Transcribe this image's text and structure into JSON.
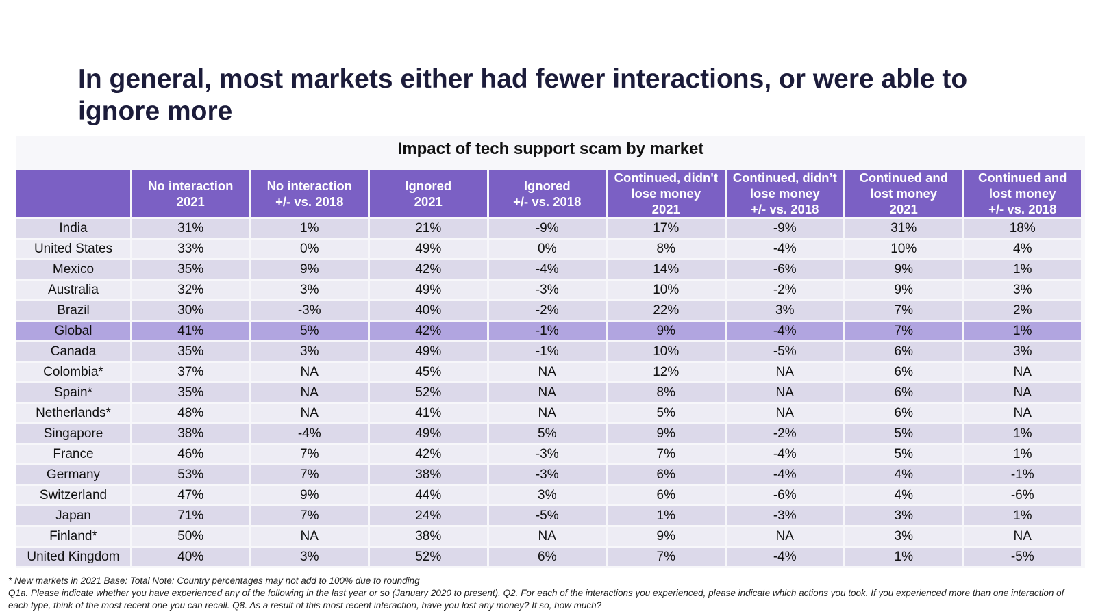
{
  "page": {
    "title": "In general, most markets either had fewer interactions, or were able to ignore more"
  },
  "chart_data": {
    "type": "table",
    "title": "Impact of tech support scam by market",
    "columns": [
      "No interaction\n2021",
      "No interaction\n+/- vs. 2018",
      "Ignored\n2021",
      "Ignored\n+/- vs. 2018",
      "Continued, didn't\nlose money\n2021",
      "Continued, didn’t\nlose money\n+/- vs. 2018",
      "Continued and\nlost money\n2021",
      "Continued and\nlost money\n+/- vs. 2018"
    ],
    "highlight_row": "Global",
    "rows": [
      {
        "market": "India",
        "values": [
          "31%",
          "1%",
          "21%",
          "-9%",
          "17%",
          "-9%",
          "31%",
          "18%"
        ]
      },
      {
        "market": "United States",
        "values": [
          "33%",
          "0%",
          "49%",
          "0%",
          "8%",
          "-4%",
          "10%",
          "4%"
        ]
      },
      {
        "market": "Mexico",
        "values": [
          "35%",
          "9%",
          "42%",
          "-4%",
          "14%",
          "-6%",
          "9%",
          "1%"
        ]
      },
      {
        "market": "Australia",
        "values": [
          "32%",
          "3%",
          "49%",
          "-3%",
          "10%",
          "-2%",
          "9%",
          "3%"
        ]
      },
      {
        "market": "Brazil",
        "values": [
          "30%",
          "-3%",
          "40%",
          "-2%",
          "22%",
          "3%",
          "7%",
          "2%"
        ]
      },
      {
        "market": "Global",
        "values": [
          "41%",
          "5%",
          "42%",
          "-1%",
          "9%",
          "-4%",
          "7%",
          "1%"
        ]
      },
      {
        "market": "Canada",
        "values": [
          "35%",
          "3%",
          "49%",
          "-1%",
          "10%",
          "-5%",
          "6%",
          "3%"
        ]
      },
      {
        "market": "Colombia*",
        "values": [
          "37%",
          "NA",
          "45%",
          "NA",
          "12%",
          "NA",
          "6%",
          "NA"
        ]
      },
      {
        "market": "Spain*",
        "values": [
          "35%",
          "NA",
          "52%",
          "NA",
          "8%",
          "NA",
          "6%",
          "NA"
        ]
      },
      {
        "market": "Netherlands*",
        "values": [
          "48%",
          "NA",
          "41%",
          "NA",
          "5%",
          "NA",
          "6%",
          "NA"
        ]
      },
      {
        "market": "Singapore",
        "values": [
          "38%",
          "-4%",
          "49%",
          "5%",
          "9%",
          "-2%",
          "5%",
          "1%"
        ]
      },
      {
        "market": "France",
        "values": [
          "46%",
          "7%",
          "42%",
          "-3%",
          "7%",
          "-4%",
          "5%",
          "1%"
        ]
      },
      {
        "market": "Germany",
        "values": [
          "53%",
          "7%",
          "38%",
          "-3%",
          "6%",
          "-4%",
          "4%",
          "-1%"
        ]
      },
      {
        "market": "Switzerland",
        "values": [
          "47%",
          "9%",
          "44%",
          "3%",
          "6%",
          "-6%",
          "4%",
          "-6%"
        ]
      },
      {
        "market": "Japan",
        "values": [
          "71%",
          "7%",
          "24%",
          "-5%",
          "1%",
          "-3%",
          "3%",
          "1%"
        ]
      },
      {
        "market": "Finland*",
        "values": [
          "50%",
          "NA",
          "38%",
          "NA",
          "9%",
          "NA",
          "3%",
          "NA"
        ]
      },
      {
        "market": "United Kingdom",
        "values": [
          "40%",
          "3%",
          "52%",
          "6%",
          "7%",
          "-4%",
          "1%",
          "-5%"
        ]
      }
    ]
  },
  "footnote": {
    "line1": "* New markets in 2021 Base: Total  Note: Country percentages may not add to 100% due to rounding",
    "line2": "Q1a. Please indicate whether you have experienced any of the following in the last year or so (January 2020 to present). Q2. For each of the interactions you experienced, please indicate which actions you took. If you experienced more than one interaction of each type, think of the most recent one you can recall. Q8. As a result of this most recent interaction, have you lost any money? If so, how much?"
  },
  "colors": {
    "header_bg": "#7b60c4",
    "row_dark": "#dcd9ea",
    "row_light": "#edecf4",
    "row_highlight": "#b1a5e0",
    "title": "#1c1c3a"
  }
}
